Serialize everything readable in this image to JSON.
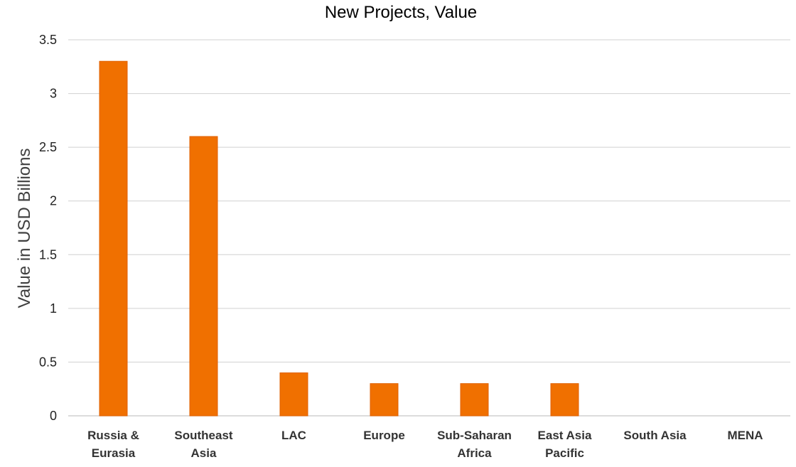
{
  "chart_data": {
    "type": "bar",
    "title": "New Projects, Value",
    "xlabel": "",
    "ylabel": "Value in USD Billions",
    "ylim": [
      0,
      3.5
    ],
    "yticks": [
      0,
      0.5,
      1,
      1.5,
      2,
      2.5,
      3,
      3.5
    ],
    "ytick_labels": [
      "0",
      "0.5",
      "1",
      "1.5",
      "2",
      "2.5",
      "3",
      "3.5"
    ],
    "grid": true,
    "bar_color": "#F07000",
    "categories": [
      [
        "Russia &",
        "Eurasia"
      ],
      [
        "Southeast",
        "Asia"
      ],
      [
        "LAC"
      ],
      [
        "Europe"
      ],
      [
        "Sub-Saharan",
        "Africa"
      ],
      [
        "East Asia",
        "Pacific"
      ],
      [
        "South Asia"
      ],
      [
        "MENA"
      ]
    ],
    "values": [
      3.3,
      2.6,
      0.4,
      0.3,
      0.3,
      0.3,
      0,
      0
    ]
  }
}
